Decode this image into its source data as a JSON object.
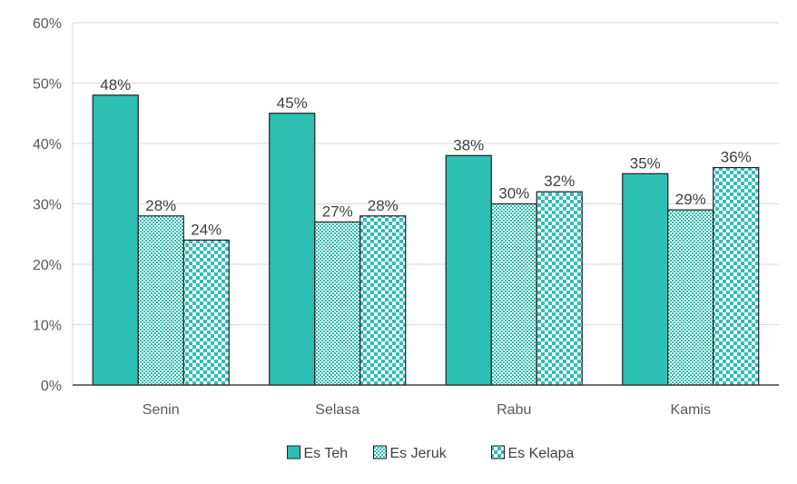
{
  "chart_data": {
    "type": "bar",
    "categories": [
      "Senin",
      "Selasa",
      "Rabu",
      "Kamis"
    ],
    "series": [
      {
        "name": "Es Teh",
        "values": [
          48,
          45,
          38,
          35
        ],
        "color": "#2ebfb4",
        "pattern": "solid"
      },
      {
        "name": "Es Jeruk",
        "values": [
          28,
          27,
          30,
          29
        ],
        "color": "#2ebfb4",
        "pattern": "fine-checker"
      },
      {
        "name": "Es Kelapa",
        "values": [
          24,
          28,
          32,
          36
        ],
        "color": "#2ebfb4",
        "pattern": "checker"
      }
    ],
    "value_suffix": "%",
    "ylim": [
      0,
      60
    ],
    "yticks": [
      "0%",
      "10%",
      "20%",
      "30%",
      "40%",
      "50%",
      "60%"
    ],
    "grid": true,
    "legend_position": "bottom",
    "title": "",
    "xlabel": "",
    "ylabel": ""
  }
}
